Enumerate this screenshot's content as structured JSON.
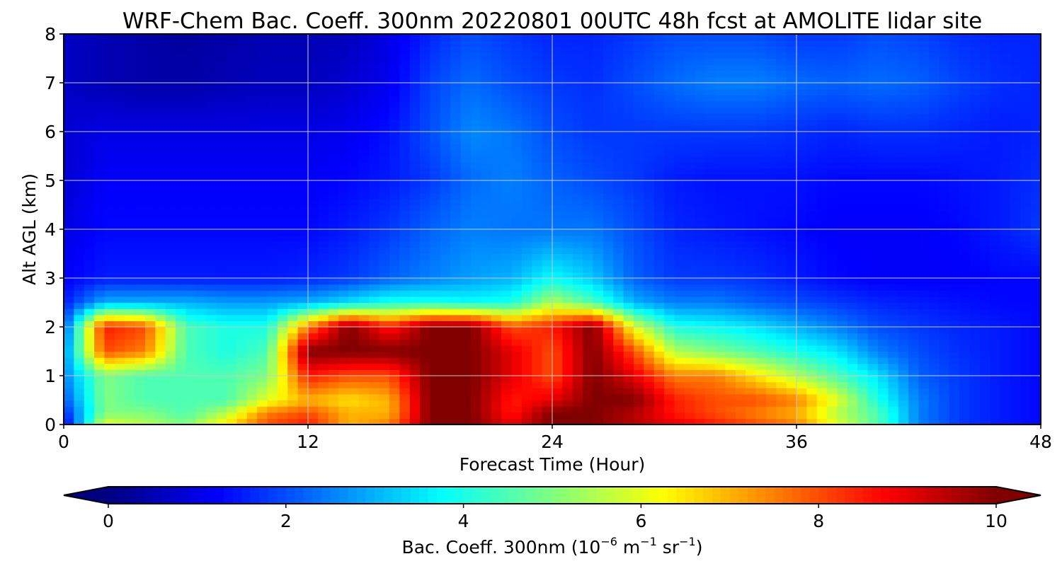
{
  "chart_data": {
    "type": "heatmap",
    "title": "WRF-Chem Bac. Coeff. 300nm  20220801 00UTC 48h fcst at AMOLITE lidar site",
    "xlabel": "Forecast Time (Hour)",
    "ylabel": "Alt AGL (km)",
    "xlim": [
      0,
      48
    ],
    "ylim": [
      0,
      8
    ],
    "xticks": [
      "0",
      "12",
      "24",
      "36",
      "48"
    ],
    "yticks": [
      "0",
      "1",
      "2",
      "3",
      "4",
      "5",
      "6",
      "7",
      "8"
    ],
    "grid": true,
    "colorbar": {
      "label_text": "Bac. Coeff. 300nm  (10",
      "label_exp1": "−6",
      "label_mid": " m",
      "label_exp2": "−1",
      "label_mid2": " sr",
      "label_exp3": "−1",
      "label_end": ")",
      "range": [
        0,
        10
      ],
      "extend": "both",
      "colormap": "jet",
      "ticks": [
        "0",
        "2",
        "4",
        "6",
        "8",
        "10"
      ]
    },
    "times_hour": [
      0,
      2,
      4,
      6,
      8,
      10,
      12,
      14,
      16,
      18,
      20,
      22,
      24,
      26,
      28,
      30,
      32,
      34,
      36,
      38,
      40,
      42,
      44,
      46,
      48
    ],
    "heights_km": [
      0,
      0.25,
      0.5,
      1,
      1.5,
      2,
      2.5,
      3,
      4,
      5,
      6,
      7,
      8
    ],
    "values": [
      [
        1.0,
        6.0,
        5.5,
        5.0,
        6.5,
        8.0,
        8.5,
        7.0,
        7.5,
        10.0,
        10.0,
        9.0,
        10.0,
        10.0,
        9.5,
        9.0,
        8.5,
        8.0,
        7.5,
        6.0,
        4.5,
        2.5,
        1.8,
        1.5,
        1.3
      ],
      [
        1.5,
        5.0,
        5.0,
        4.5,
        5.5,
        7.5,
        8.0,
        7.0,
        7.0,
        10.0,
        10.0,
        8.5,
        10.0,
        10.0,
        9.5,
        8.5,
        8.0,
        7.5,
        7.0,
        5.5,
        4.5,
        2.5,
        1.8,
        1.5,
        1.3
      ],
      [
        2.0,
        5.0,
        4.5,
        4.5,
        4.5,
        6.0,
        7.0,
        6.5,
        7.0,
        10.0,
        10.0,
        8.5,
        9.0,
        10.0,
        10.0,
        8.5,
        8.0,
        8.0,
        7.5,
        6.0,
        4.0,
        2.5,
        1.8,
        1.5,
        1.3
      ],
      [
        2.5,
        5.0,
        4.5,
        4.5,
        4.5,
        5.0,
        8.5,
        8.0,
        8.0,
        10.0,
        10.0,
        9.0,
        8.0,
        10.0,
        9.0,
        7.5,
        7.5,
        6.5,
        5.5,
        4.5,
        3.5,
        2.2,
        1.8,
        1.5,
        1.3
      ],
      [
        2.5,
        8.0,
        7.5,
        4.5,
        4.0,
        4.5,
        10.0,
        10.0,
        10.0,
        10.0,
        10.0,
        9.0,
        8.0,
        10.0,
        8.0,
        5.5,
        5.0,
        4.5,
        4.0,
        3.5,
        2.5,
        2.0,
        1.7,
        1.5,
        1.3
      ],
      [
        2.0,
        8.5,
        8.0,
        4.5,
        4.0,
        4.0,
        7.5,
        10.0,
        8.5,
        10.0,
        10.0,
        8.0,
        8.5,
        10.0,
        6.0,
        4.0,
        3.8,
        3.5,
        3.0,
        2.5,
        2.0,
        1.8,
        1.6,
        1.5,
        1.3
      ],
      [
        1.5,
        3.0,
        3.0,
        3.0,
        2.8,
        2.8,
        3.0,
        3.5,
        4.0,
        4.0,
        3.8,
        4.0,
        5.5,
        4.5,
        3.0,
        2.5,
        2.5,
        2.2,
        2.0,
        1.8,
        1.6,
        1.5,
        1.4,
        1.3,
        1.3
      ],
      [
        1.2,
        1.5,
        1.5,
        1.5,
        1.5,
        1.5,
        1.6,
        1.8,
        2.2,
        2.5,
        2.8,
        3.0,
        3.8,
        3.2,
        2.2,
        1.8,
        1.8,
        1.7,
        1.5,
        1.3,
        1.2,
        1.2,
        1.2,
        1.3,
        1.3
      ],
      [
        1.0,
        1.3,
        1.3,
        1.3,
        1.3,
        1.3,
        1.3,
        1.5,
        1.8,
        2.2,
        2.5,
        2.4,
        2.4,
        2.4,
        2.0,
        1.6,
        1.5,
        1.4,
        1.3,
        1.2,
        1.2,
        1.2,
        1.3,
        1.5,
        1.8
      ],
      [
        0.8,
        1.2,
        1.2,
        1.2,
        1.2,
        1.2,
        1.2,
        1.3,
        1.5,
        1.8,
        2.3,
        2.5,
        2.2,
        2.0,
        1.8,
        1.5,
        1.4,
        1.4,
        1.4,
        1.3,
        1.3,
        1.3,
        1.4,
        1.5,
        1.7
      ],
      [
        0.8,
        1.0,
        1.0,
        1.0,
        1.0,
        1.0,
        1.0,
        1.1,
        1.4,
        2.0,
        2.6,
        2.4,
        2.0,
        1.8,
        1.8,
        1.8,
        1.8,
        1.8,
        1.7,
        1.6,
        1.7,
        1.7,
        1.6,
        1.5,
        1.6
      ],
      [
        0.7,
        0.5,
        0.4,
        0.4,
        0.5,
        0.6,
        0.6,
        0.8,
        1.1,
        1.9,
        2.3,
        2.0,
        1.8,
        1.7,
        2.0,
        2.3,
        2.5,
        2.5,
        2.3,
        2.2,
        2.3,
        2.2,
        1.9,
        1.7,
        1.6
      ],
      [
        0.7,
        0.5,
        0.4,
        0.3,
        0.4,
        0.5,
        0.5,
        0.6,
        1.0,
        1.6,
        2.0,
        1.8,
        1.6,
        1.6,
        1.8,
        2.0,
        2.0,
        2.0,
        1.8,
        1.8,
        2.0,
        1.9,
        1.7,
        1.6,
        1.6
      ]
    ]
  }
}
